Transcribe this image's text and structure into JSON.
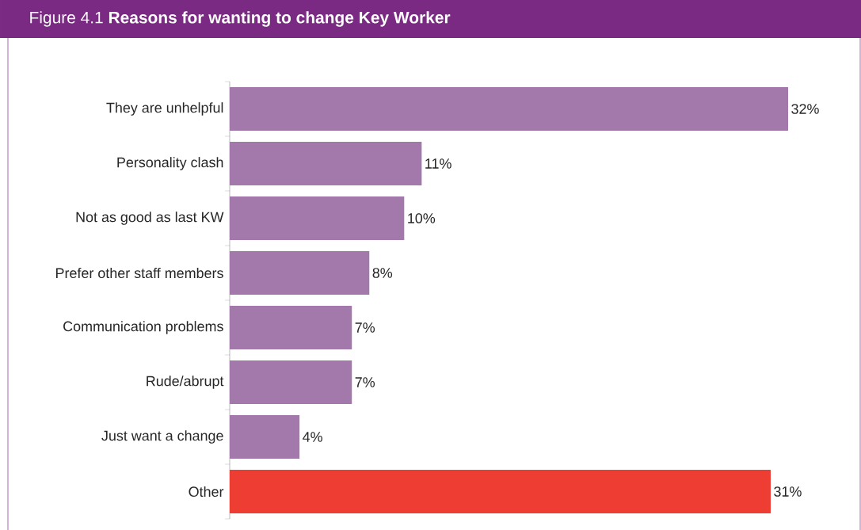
{
  "chart_data": {
    "type": "bar",
    "orientation": "horizontal",
    "title": "Figure 4.1 **Reasons for wanting to change Key Worker**",
    "categories": [
      "They are unhelpful",
      "Personality clash",
      "Not as good as last KW",
      "Prefer other staff members",
      "Communication problems",
      "Rude/abrupt",
      "Just want a change",
      "Other"
    ],
    "values": [
      32,
      11,
      10,
      8,
      7,
      7,
      4,
      31
    ],
    "value_labels": [
      "32%",
      "11%",
      "10%",
      "8%",
      "7%",
      "7%",
      "4%",
      "31%"
    ],
    "colors": [
      "#a279aa",
      "#a279aa",
      "#a279aa",
      "#a279aa",
      "#a279aa",
      "#a279aa",
      "#a279aa",
      "#ee3e33"
    ]
  }
}
